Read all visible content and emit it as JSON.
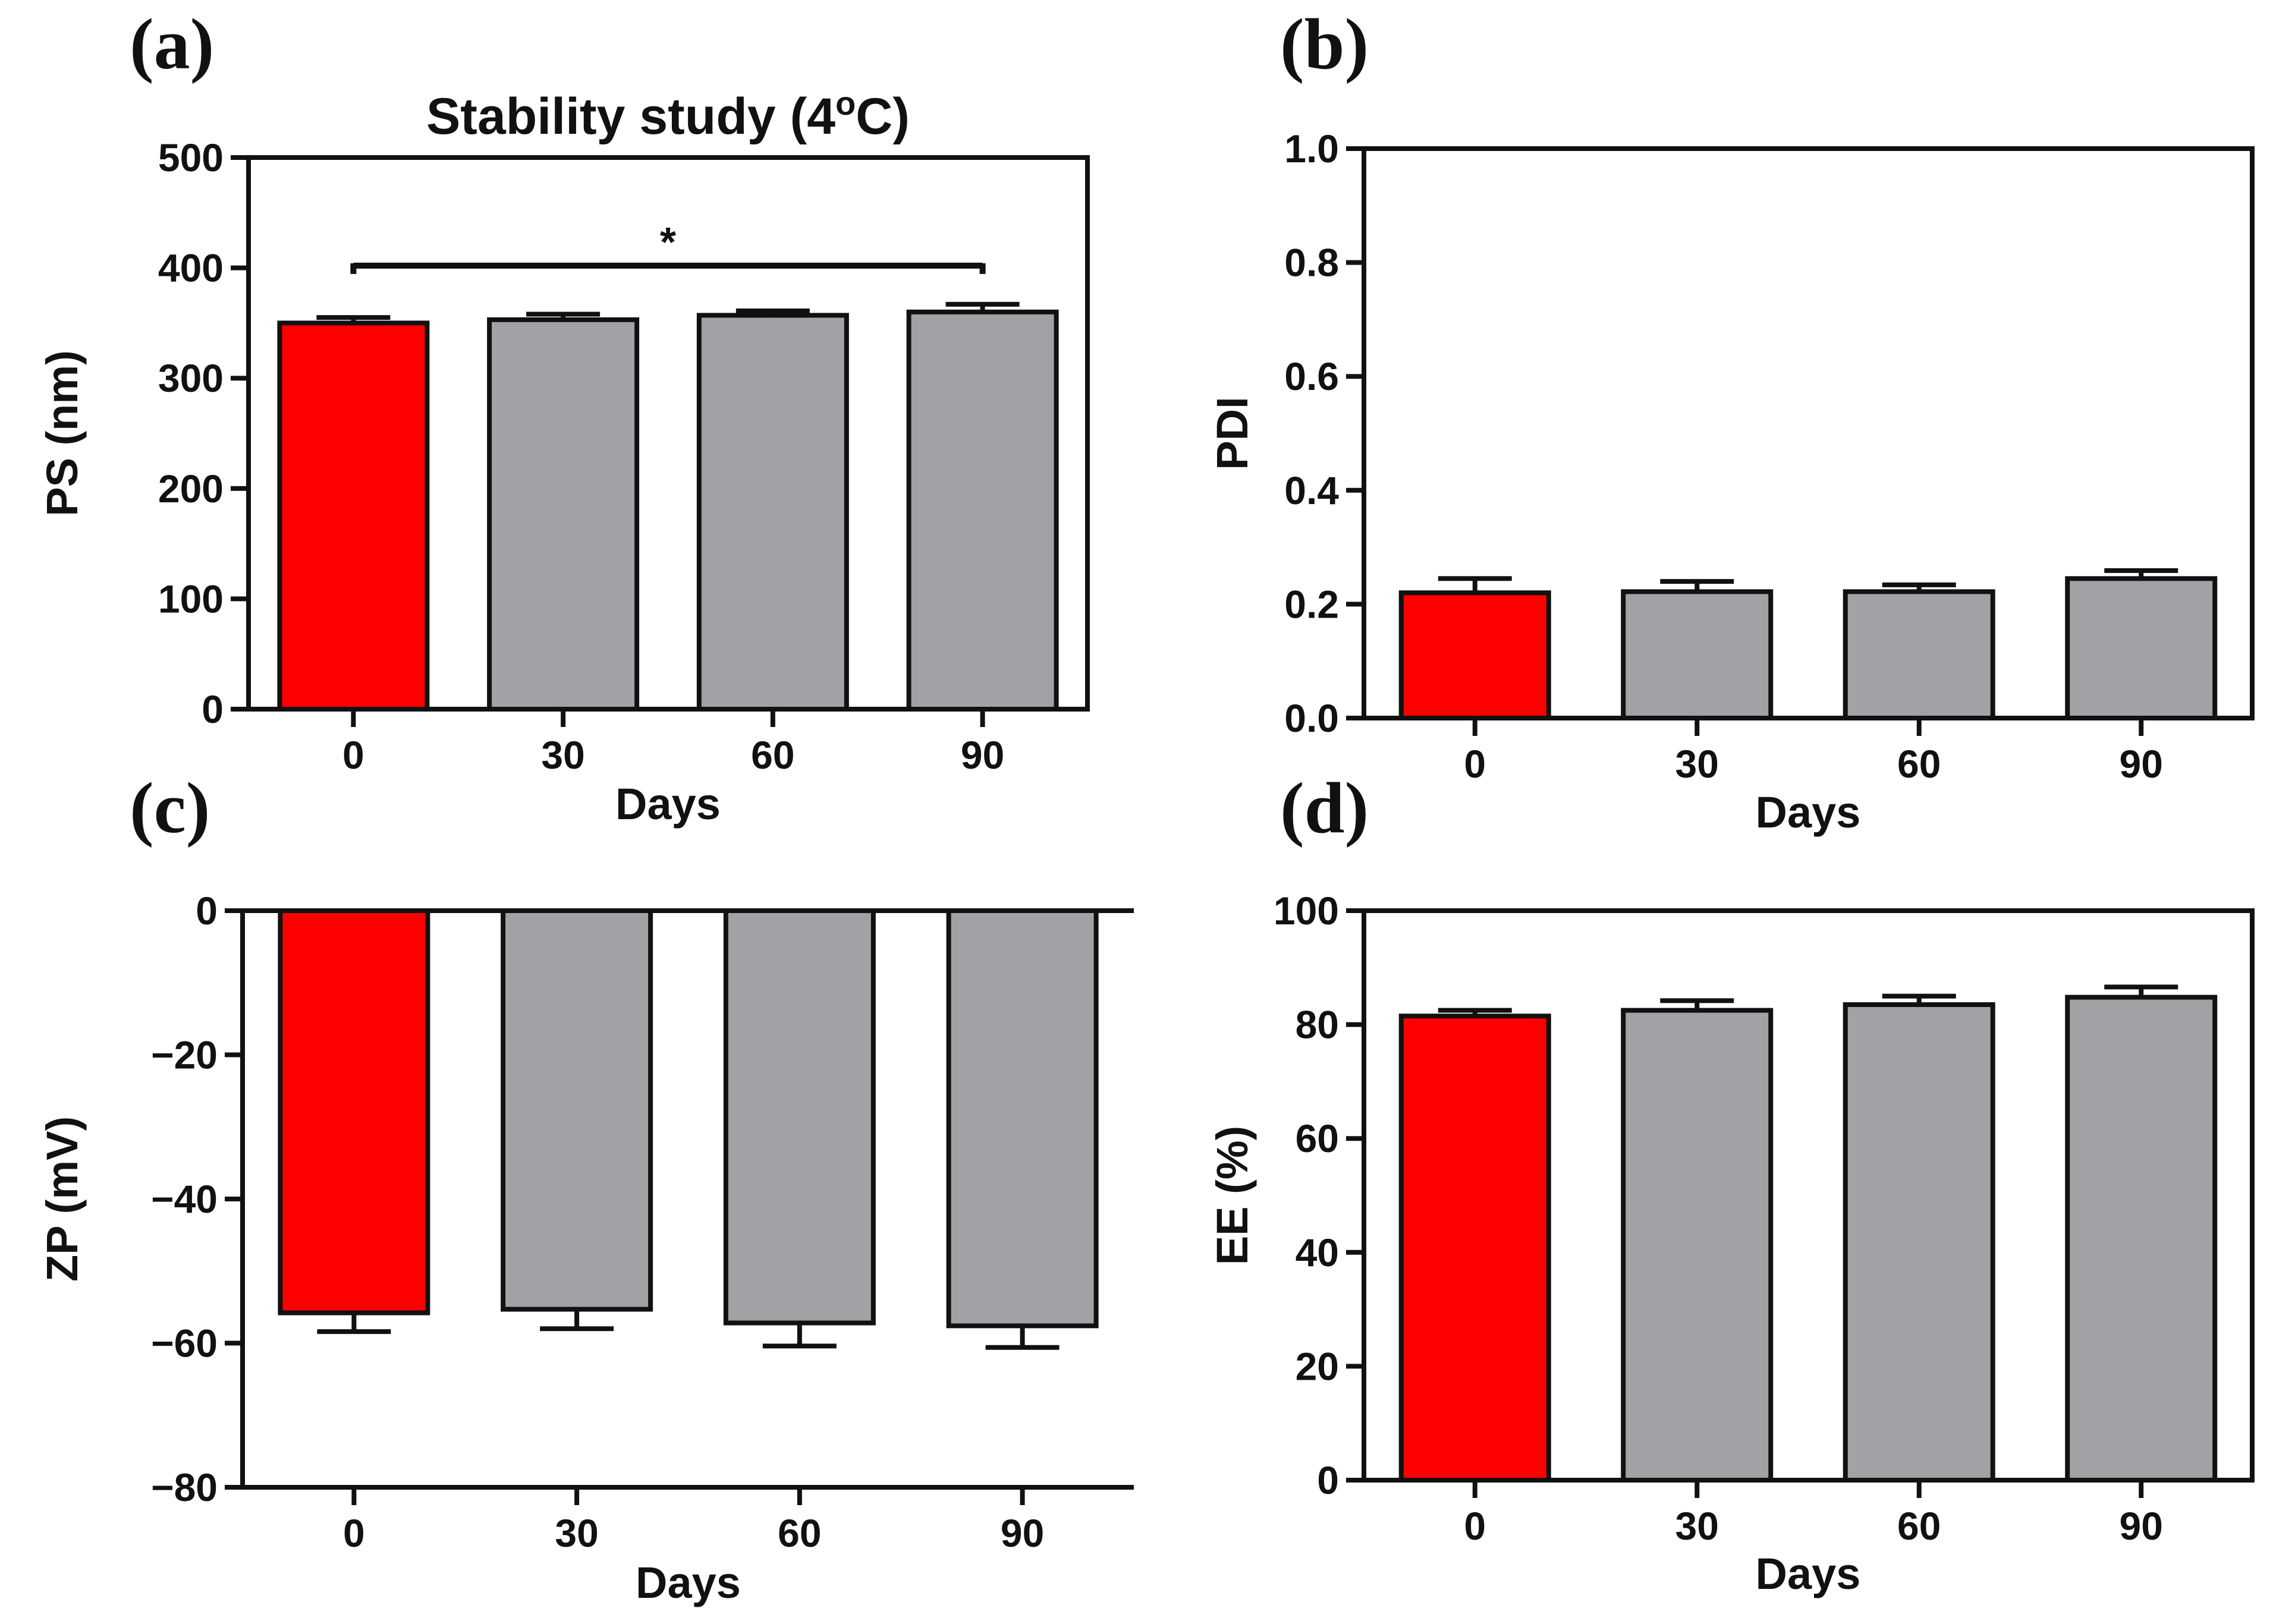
{
  "chart_data": [
    {
      "panel": "(a)",
      "type": "bar",
      "title": "Stability study (4",
      "title_superscript": "o",
      "title_suffix": "C)",
      "xlabel": "Days",
      "ylabel": "PS (nm)",
      "categories": [
        "0",
        "30",
        "60",
        "90"
      ],
      "values": [
        350,
        353,
        357,
        360
      ],
      "errors": [
        5,
        5,
        4,
        7
      ],
      "ylim": [
        0,
        500
      ],
      "yticks": [
        0,
        100,
        200,
        300,
        400,
        500
      ],
      "ytick_labels": [
        "0",
        "100",
        "200",
        "300",
        "400",
        "500"
      ],
      "bar_colors": [
        "#ff0000",
        "#a2a1a6",
        "#a2a1a6",
        "#a2a1a6"
      ],
      "significance": {
        "from": 0,
        "to": 3,
        "value": 402,
        "label": "*"
      }
    },
    {
      "panel": "(b)",
      "type": "bar",
      "xlabel": "Days",
      "ylabel": "PDI",
      "categories": [
        "0",
        "30",
        "60",
        "90"
      ],
      "values": [
        0.22,
        0.222,
        0.222,
        0.245
      ],
      "errors": [
        0.025,
        0.018,
        0.012,
        0.014
      ],
      "ylim": [
        0,
        1.0
      ],
      "yticks": [
        0,
        0.2,
        0.4,
        0.6,
        0.8,
        1.0
      ],
      "ytick_labels": [
        "0.0",
        "0.2",
        "0.4",
        "0.6",
        "0.8",
        "1.0"
      ],
      "bar_colors": [
        "#ff0000",
        "#a2a1a6",
        "#a2a1a6",
        "#a2a1a6"
      ]
    },
    {
      "panel": "(c)",
      "type": "bar",
      "xlabel": "Days",
      "ylabel": "ZP (mV)",
      "categories": [
        "0",
        "30",
        "60",
        "90"
      ],
      "values": [
        -55.8,
        -55.3,
        -57.2,
        -57.6
      ],
      "errors": [
        2.6,
        2.7,
        3.2,
        3.0
      ],
      "ylim": [
        -80,
        0
      ],
      "yticks": [
        -80,
        -60,
        -40,
        -20,
        0
      ],
      "ytick_labels": [
        "−80",
        "−60",
        "−40",
        "−20",
        "0"
      ],
      "bar_colors": [
        "#ff0000",
        "#a2a1a6",
        "#a2a1a6",
        "#a2a1a6"
      ]
    },
    {
      "panel": "(d)",
      "type": "bar",
      "xlabel": "Days",
      "ylabel": "EE (%)",
      "categories": [
        "0",
        "30",
        "60",
        "90"
      ],
      "values": [
        81.5,
        82.5,
        83.5,
        84.8
      ],
      "errors": [
        1.0,
        1.7,
        1.5,
        1.8
      ],
      "ylim": [
        0,
        100
      ],
      "yticks": [
        0,
        20,
        40,
        60,
        80,
        100
      ],
      "ytick_labels": [
        "0",
        "20",
        "40",
        "60",
        "80",
        "100"
      ],
      "bar_colors": [
        "#ff0000",
        "#a2a1a6",
        "#a2a1a6",
        "#a2a1a6"
      ]
    }
  ]
}
